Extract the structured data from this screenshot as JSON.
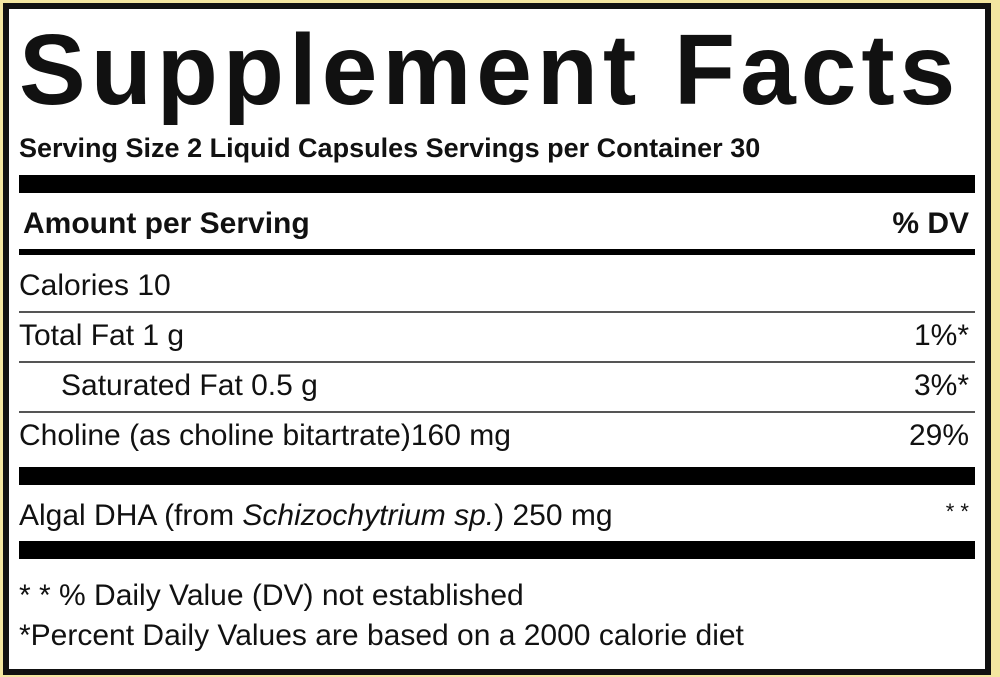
{
  "label": {
    "title": "Supplement Facts",
    "serving": "Serving Size 2 Liquid Capsules  Servings per Container 30",
    "header": {
      "amount": "Amount per Serving",
      "dv": "% DV"
    },
    "rows": [
      {
        "name": "Calories 10",
        "dv": ""
      },
      {
        "name": "Total Fat 1 g",
        "dv": "1%*"
      },
      {
        "name": "Saturated Fat 0.5 g",
        "dv": "3%*"
      },
      {
        "name": "Choline (as choline bitartrate)160 mg",
        "dv": "29%"
      }
    ],
    "algal": {
      "prefix": "Algal DHA (from ",
      "italic": "Schizochytrium sp.",
      "suffix": ") 250 mg",
      "dv": "* *"
    },
    "footnotes": [
      "* * % Daily Value (DV) not established",
      "*Percent Daily Values are based on a 2000 calorie diet"
    ]
  }
}
